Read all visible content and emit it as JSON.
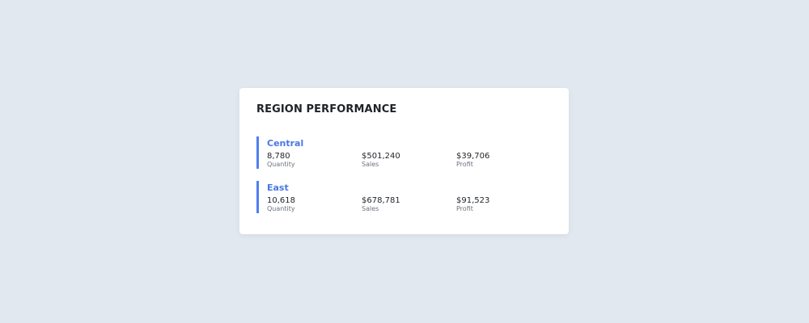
{
  "card": {
    "title": "REGION PERFORMANCE"
  },
  "colors": {
    "background": "#e2e8f0",
    "card": "#ffffff",
    "accent": "#4f7ff0",
    "region_name": "#4a77e6"
  },
  "regions": [
    {
      "name": "Central",
      "metrics": [
        {
          "value": "8,780",
          "label": "Quantity"
        },
        {
          "value": "$501,240",
          "label": "Sales"
        },
        {
          "value": "$39,706",
          "label": "Profit"
        }
      ]
    },
    {
      "name": "East",
      "metrics": [
        {
          "value": "10,618",
          "label": "Quantity"
        },
        {
          "value": "$678,781",
          "label": "Sales"
        },
        {
          "value": "$91,523",
          "label": "Profit"
        }
      ]
    }
  ]
}
